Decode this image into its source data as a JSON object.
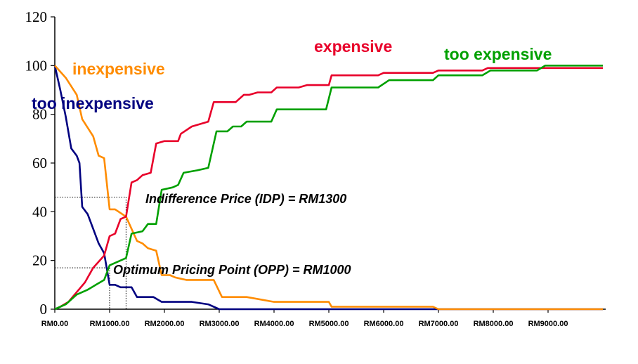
{
  "chart_data": {
    "type": "line",
    "xlabel": "",
    "ylabel": "",
    "xlim": [
      0,
      10000
    ],
    "ylim": [
      0,
      120
    ],
    "yticks": [
      "0",
      "20",
      "40",
      "60",
      "80",
      "100",
      "120"
    ],
    "xticks": [
      {
        "value": 0,
        "label": "RM0.00"
      },
      {
        "value": 1000,
        "label": "RM1000.00"
      },
      {
        "value": 2000,
        "label": "RM2000.00"
      },
      {
        "value": 3000,
        "label": "RM3000.00"
      },
      {
        "value": 4000,
        "label": "RM4000.00"
      },
      {
        "value": 5000,
        "label": "RM5000.00"
      },
      {
        "value": 6000,
        "label": "RM6000.00"
      },
      {
        "value": 7000,
        "label": "RM7000.00"
      },
      {
        "value": 8000,
        "label": "RM8000.00"
      },
      {
        "value": 9000,
        "label": "RM9000.00"
      }
    ],
    "grid": false,
    "series": [
      {
        "name": "too inexpensive",
        "color": "#000080",
        "points": [
          [
            0,
            100
          ],
          [
            100,
            90
          ],
          [
            200,
            79
          ],
          [
            300,
            66
          ],
          [
            400,
            63
          ],
          [
            450,
            60
          ],
          [
            500,
            42
          ],
          [
            600,
            39
          ],
          [
            700,
            33
          ],
          [
            800,
            27
          ],
          [
            900,
            23
          ],
          [
            1000,
            10
          ],
          [
            1100,
            10
          ],
          [
            1200,
            9
          ],
          [
            1400,
            9
          ],
          [
            1500,
            5
          ],
          [
            1800,
            5
          ],
          [
            1950,
            3
          ],
          [
            2500,
            3
          ],
          [
            2800,
            2
          ],
          [
            3000,
            0
          ],
          [
            10000,
            0
          ]
        ]
      },
      {
        "name": "inexpensive",
        "color": "#FF8C00",
        "points": [
          [
            0,
            100
          ],
          [
            200,
            95
          ],
          [
            400,
            88
          ],
          [
            500,
            78
          ],
          [
            700,
            71
          ],
          [
            800,
            63
          ],
          [
            900,
            62
          ],
          [
            1000,
            41
          ],
          [
            1100,
            41
          ],
          [
            1300,
            38
          ],
          [
            1500,
            28
          ],
          [
            1600,
            27
          ],
          [
            1700,
            25
          ],
          [
            1850,
            24
          ],
          [
            1950,
            14
          ],
          [
            2100,
            14
          ],
          [
            2200,
            13
          ],
          [
            2400,
            12
          ],
          [
            2900,
            12
          ],
          [
            3050,
            5
          ],
          [
            3500,
            5
          ],
          [
            4000,
            3
          ],
          [
            5000,
            3
          ],
          [
            5050,
            1
          ],
          [
            6900,
            1
          ],
          [
            7000,
            0
          ],
          [
            10000,
            0
          ]
        ]
      },
      {
        "name": "expensive",
        "color": "#E8002A",
        "points": [
          [
            0,
            0
          ],
          [
            100,
            1
          ],
          [
            250,
            3
          ],
          [
            400,
            7
          ],
          [
            550,
            11
          ],
          [
            700,
            17
          ],
          [
            900,
            22
          ],
          [
            1000,
            30
          ],
          [
            1100,
            31
          ],
          [
            1200,
            37
          ],
          [
            1300,
            38
          ],
          [
            1400,
            52
          ],
          [
            1500,
            53
          ],
          [
            1600,
            55
          ],
          [
            1750,
            56
          ],
          [
            1850,
            68
          ],
          [
            2000,
            69
          ],
          [
            2250,
            69
          ],
          [
            2300,
            72
          ],
          [
            2500,
            75
          ],
          [
            2800,
            77
          ],
          [
            2900,
            85
          ],
          [
            3300,
            85
          ],
          [
            3450,
            88
          ],
          [
            3550,
            88
          ],
          [
            3700,
            89
          ],
          [
            3950,
            89
          ],
          [
            4050,
            91
          ],
          [
            4450,
            91
          ],
          [
            4600,
            92
          ],
          [
            5000,
            92
          ],
          [
            5050,
            96
          ],
          [
            5900,
            96
          ],
          [
            6000,
            97
          ],
          [
            6500,
            97
          ],
          [
            6900,
            97
          ],
          [
            7000,
            98
          ],
          [
            7800,
            98
          ],
          [
            7900,
            99
          ],
          [
            10000,
            99
          ]
        ]
      },
      {
        "name": "too expensive",
        "color": "#00A000",
        "points": [
          [
            0,
            0
          ],
          [
            200,
            2
          ],
          [
            400,
            6
          ],
          [
            600,
            8
          ],
          [
            750,
            10
          ],
          [
            900,
            12
          ],
          [
            1000,
            18
          ],
          [
            1200,
            20
          ],
          [
            1300,
            21
          ],
          [
            1400,
            31
          ],
          [
            1600,
            32
          ],
          [
            1700,
            35
          ],
          [
            1850,
            35
          ],
          [
            1950,
            49
          ],
          [
            2150,
            50
          ],
          [
            2250,
            51
          ],
          [
            2350,
            56
          ],
          [
            2600,
            57
          ],
          [
            2800,
            58
          ],
          [
            2950,
            73
          ],
          [
            3150,
            73
          ],
          [
            3250,
            75
          ],
          [
            3400,
            75
          ],
          [
            3500,
            77
          ],
          [
            3950,
            77
          ],
          [
            4050,
            82
          ],
          [
            4950,
            82
          ],
          [
            5050,
            91
          ],
          [
            5900,
            91
          ],
          [
            6100,
            94
          ],
          [
            6900,
            94
          ],
          [
            7000,
            96
          ],
          [
            7800,
            96
          ],
          [
            7950,
            98
          ],
          [
            8800,
            98
          ],
          [
            8950,
            100
          ],
          [
            10000,
            100
          ]
        ]
      }
    ],
    "series_labels": {
      "too_inexpensive": "too inexpensive",
      "inexpensive": "inexpensive",
      "expensive": "expensive",
      "too_expensive": "too expensive"
    },
    "annotations": {
      "idp": {
        "text": "Indifference Price (IDP) = RM1300",
        "x": 1300,
        "y": 38
      },
      "opp": {
        "text": "Optimum Pricing Point (OPP) = RM1000",
        "x": 1000,
        "y": 17
      }
    }
  }
}
